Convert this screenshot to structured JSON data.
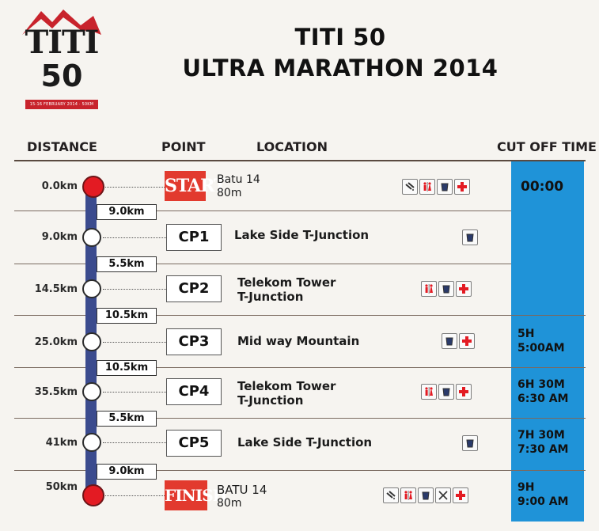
{
  "logo": {
    "line1": "TITI",
    "line2": "50",
    "sub": "15-16 FEBRUARY 2014 · 50KM"
  },
  "title": {
    "line1": "TITI 50",
    "line2": "ULTRA MARATHON 2014"
  },
  "headers": {
    "distance": "DISTANCE",
    "point": "POINT",
    "location": "LOCATION",
    "cutoff": "CUT OFF TIME"
  },
  "points": [
    {
      "distance": "0.0km",
      "point": "START",
      "location": [
        "Batu 14"
      ],
      "altitude": "80m",
      "icons": [
        "shower-icon",
        "toilet-icon",
        "water-icon",
        "first-aid-icon"
      ],
      "cutoff": [
        "00:00"
      ]
    },
    {
      "distance": "9.0km",
      "point": "CP1",
      "location": [
        "Lake Side T-Junction"
      ],
      "altitude": "",
      "icons": [
        "water-icon"
      ],
      "cutoff": []
    },
    {
      "distance": "14.5km",
      "point": "CP2",
      "location": [
        "Telekom Tower",
        "T-Junction"
      ],
      "altitude": "",
      "icons": [
        "toilet-icon",
        "water-icon",
        "first-aid-icon"
      ],
      "cutoff": []
    },
    {
      "distance": "25.0km",
      "point": "CP3",
      "location": [
        "Mid way Mountain"
      ],
      "altitude": "",
      "icons": [
        "water-icon",
        "first-aid-icon"
      ],
      "cutoff": [
        "5H",
        "5:00AM"
      ]
    },
    {
      "distance": "35.5km",
      "point": "CP4",
      "location": [
        "Telekom Tower",
        "T-Junction"
      ],
      "altitude": "",
      "icons": [
        "toilet-icon",
        "water-icon",
        "first-aid-icon"
      ],
      "cutoff": [
        "6H 30M",
        "6:30 AM"
      ]
    },
    {
      "distance": "41km",
      "point": "CP5",
      "location": [
        "Lake Side T-Junction"
      ],
      "altitude": "",
      "icons": [
        "water-icon"
      ],
      "cutoff": [
        "7H 30M",
        "7:30 AM"
      ]
    },
    {
      "distance": "50km",
      "point": "FINISH",
      "location": [
        "BATU 14"
      ],
      "altitude": "80m",
      "icons": [
        "shower-icon",
        "toilet-icon",
        "water-icon",
        "food-icon",
        "first-aid-icon"
      ],
      "cutoff": [
        "9H",
        "9:00 AM"
      ]
    }
  ],
  "segments": [
    "9.0km",
    "5.5km",
    "10.5km",
    "10.5km",
    "5.5km",
    "9.0km"
  ],
  "colors": {
    "cutoff_band": "#1f93d8",
    "track": "#3b4b8e",
    "start_finish": "#e23a2e",
    "red_node": "#e31b23"
  }
}
